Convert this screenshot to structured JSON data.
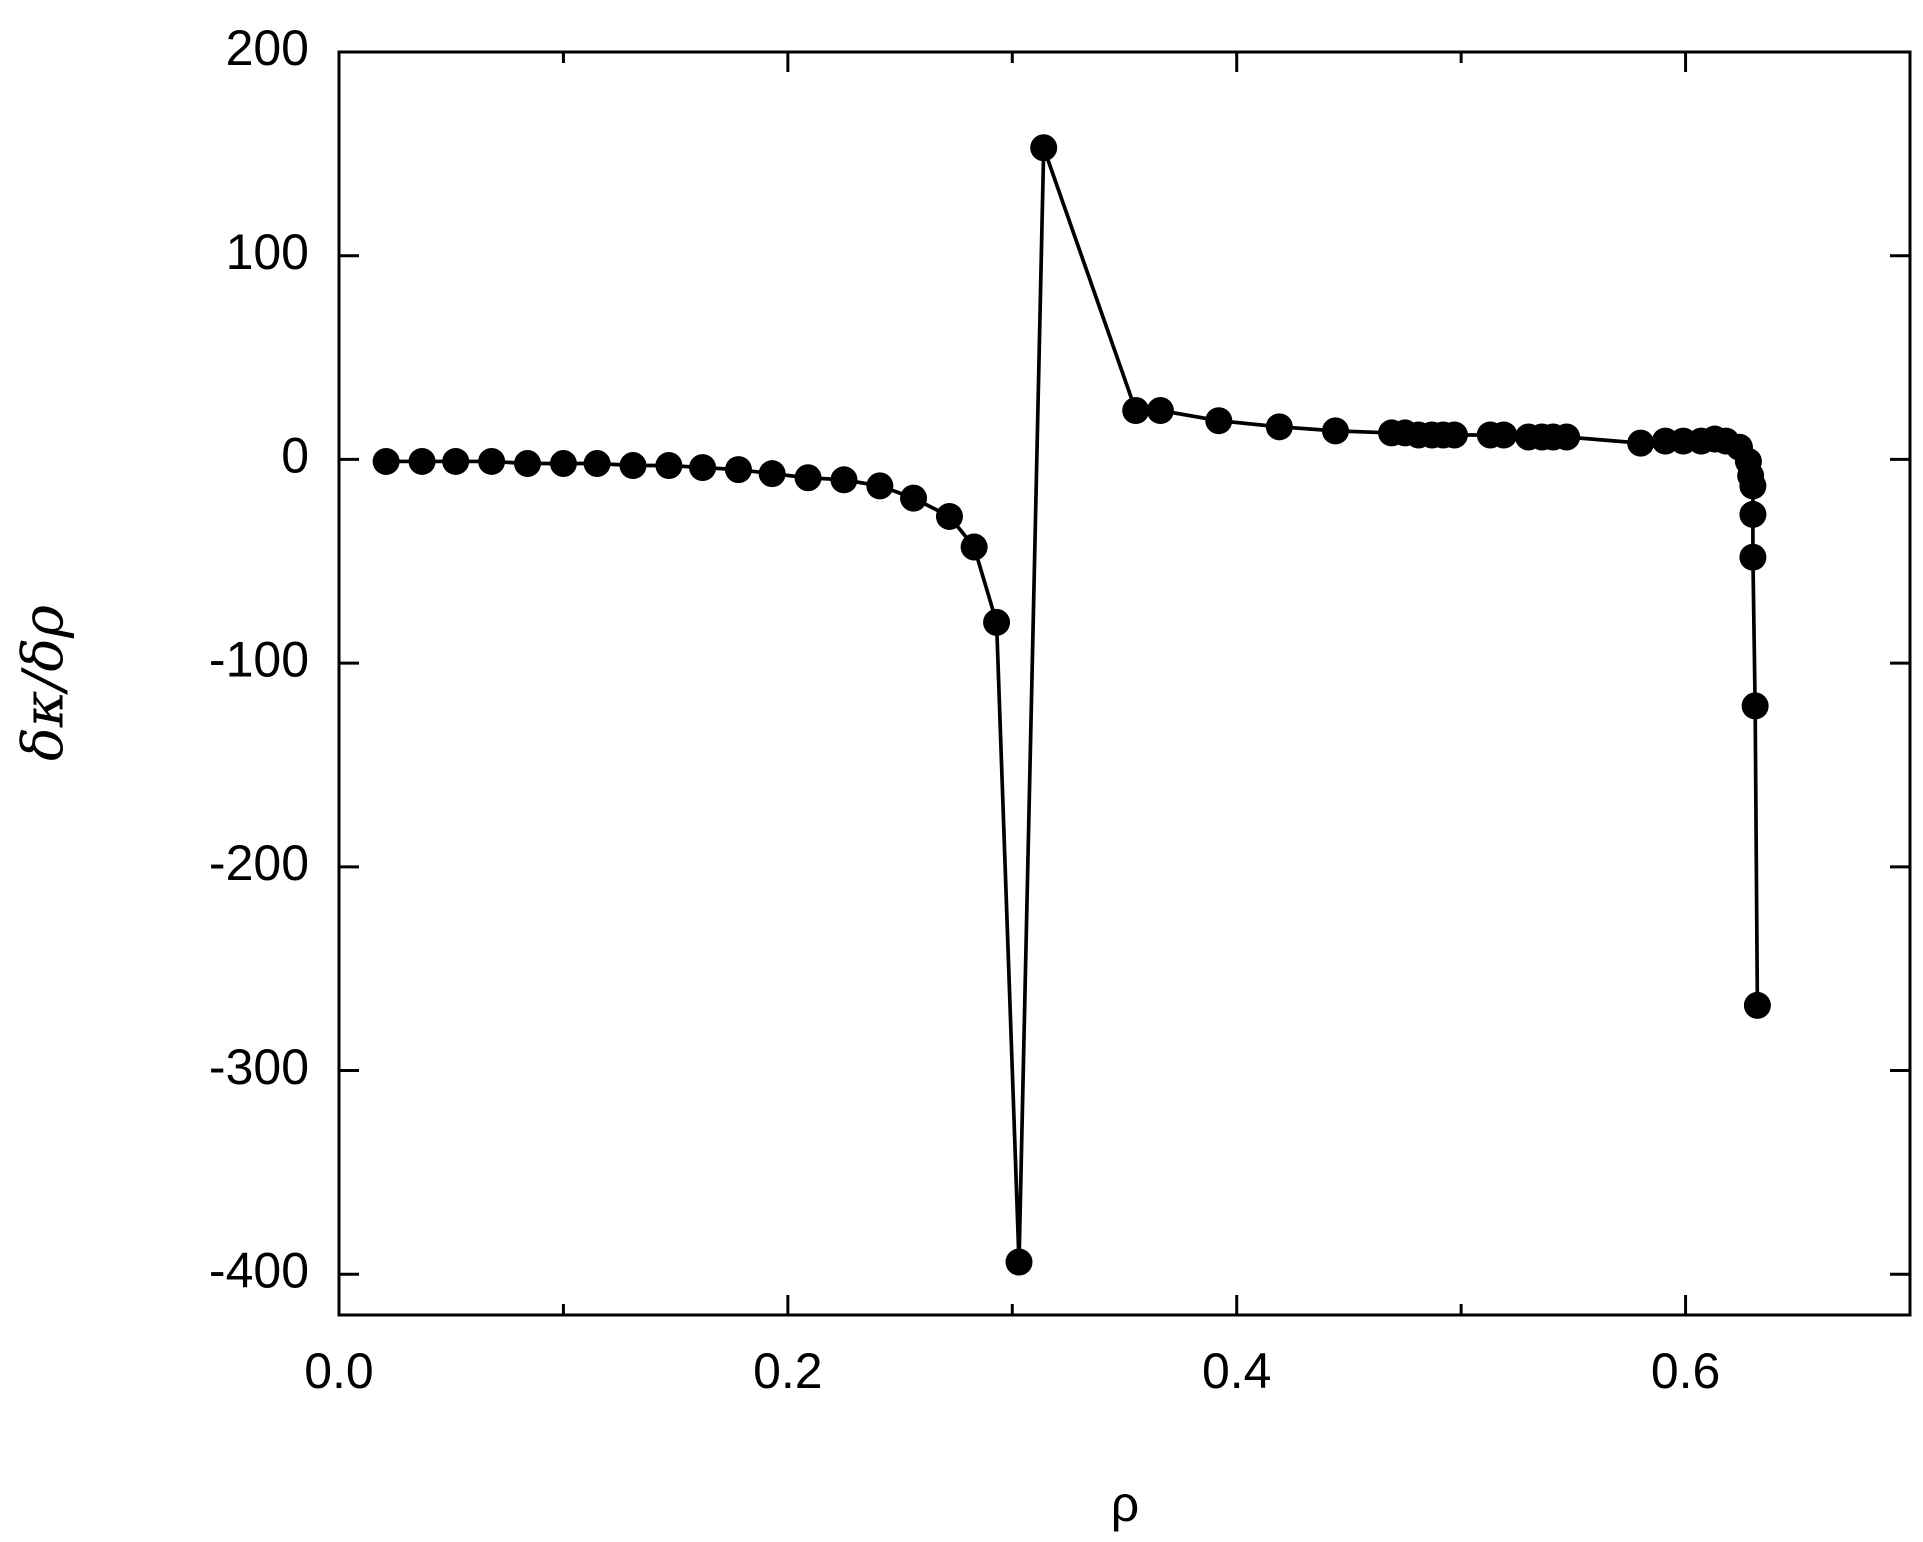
{
  "chart_data": {
    "type": "line",
    "xlabel": "ρ",
    "ylabel": "δκ/δρ",
    "xlim": [
      0,
      0.7
    ],
    "ylim": [
      -420,
      200
    ],
    "xticks": [
      {
        "value": 0,
        "label": "0.0"
      },
      0.2,
      0.4,
      0.6
    ],
    "xminorticks": [
      0.1,
      0.3,
      0.5
    ],
    "yticks": [
      -400,
      -300,
      -200,
      -100,
      0,
      100,
      200
    ],
    "series": [
      {
        "color": "#000000",
        "x": [
          0.021,
          0.037,
          0.052,
          0.068,
          0.084,
          0.1,
          0.115,
          0.131,
          0.147,
          0.162,
          0.178,
          0.193,
          0.209,
          0.225,
          0.241,
          0.256,
          0.272,
          0.283,
          0.293,
          0.303,
          0.314,
          0.355,
          0.366,
          0.392,
          0.419,
          0.444,
          0.469,
          0.475,
          0.481,
          0.487,
          0.492,
          0.497,
          0.513,
          0.519,
          0.53,
          0.536,
          0.541,
          0.547,
          0.58,
          0.591,
          0.599,
          0.607,
          0.613,
          0.618,
          0.624,
          0.628,
          0.629,
          0.63,
          0.63,
          0.63,
          0.631,
          0.632
        ],
        "values": [
          -1,
          -1,
          -1,
          -1,
          -2,
          -2,
          -2,
          -3,
          -3,
          -4,
          -5,
          -7,
          -9,
          -10,
          -13,
          -19,
          -28,
          -43,
          -80,
          -394,
          153,
          24,
          24,
          19,
          16,
          14,
          13,
          13,
          12,
          12,
          12,
          12,
          12,
          12,
          11,
          11,
          11,
          11,
          8,
          9,
          9,
          9,
          10,
          9,
          6,
          -1,
          -8,
          -13,
          -27,
          -48,
          -121,
          -268
        ]
      }
    ]
  }
}
